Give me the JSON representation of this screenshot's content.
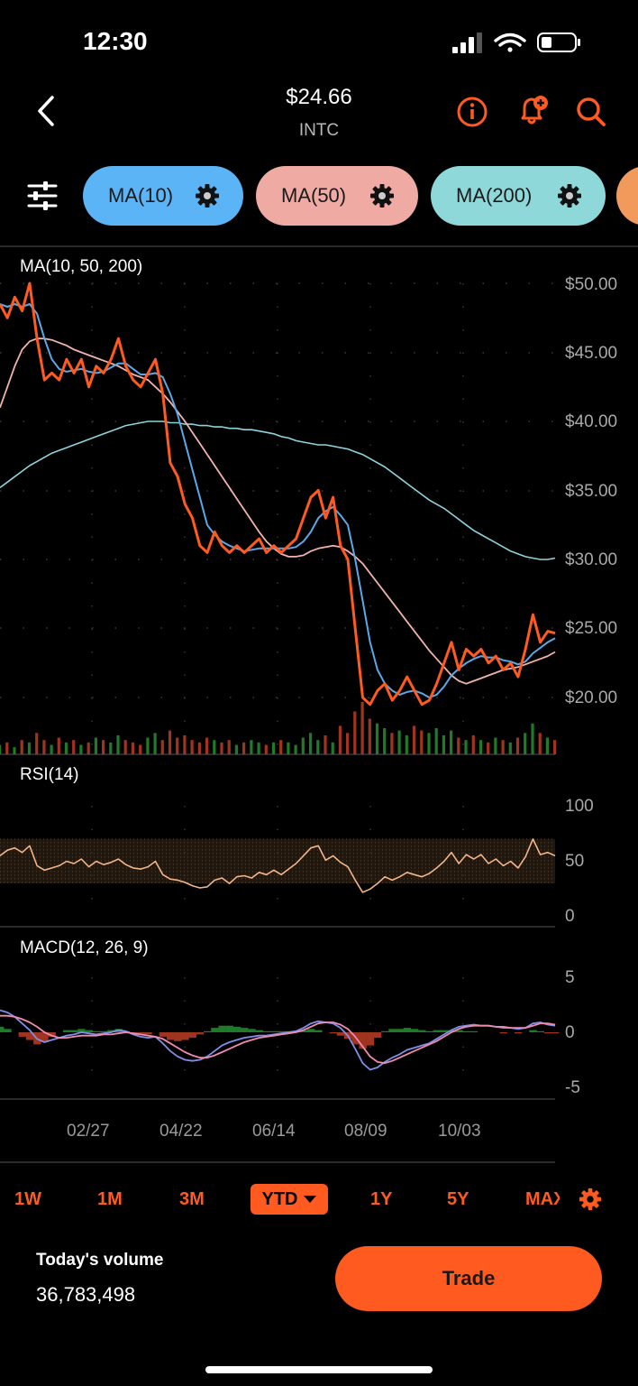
{
  "status_bar": {
    "time": "12:30"
  },
  "header": {
    "price": "$24.66",
    "ticker": "INTC"
  },
  "indicator_pills": [
    {
      "label": "MA(10)",
      "color": "#5bb4f5"
    },
    {
      "label": "MA(50)",
      "color": "#f0aaa4"
    },
    {
      "label": "MA(200)",
      "color": "#8ed8da"
    }
  ],
  "panels": {
    "ma_label": "MA(10, 50, 200)",
    "rsi_label": "RSI(14)",
    "macd_label": "MACD(12, 26, 9)"
  },
  "range_tabs": [
    "1W",
    "1M",
    "3M",
    "YTD",
    "1Y",
    "5Y",
    "MAX"
  ],
  "selected_range": "YTD",
  "footer": {
    "volume_label": "Today's volume",
    "volume_value": "36,783,498",
    "trade_label": "Trade"
  },
  "colors": {
    "accent": "#ff5a1f",
    "price": "#ff5a1f",
    "ma10": "#5aa9e6",
    "ma50": "#f2b3ad",
    "ma200": "#8fd3dd",
    "rsi": "#f2b58a",
    "macd": "#7f8fe8",
    "signal": "#f08ab0",
    "hist_pos": "#1f7a2a",
    "hist_neg": "#a0341e"
  },
  "chart_data": [
    {
      "type": "line",
      "title": "MA(10, 50, 200)",
      "x_ticks": [
        "02/27",
        "04/22",
        "06/14",
        "08/09",
        "10/03"
      ],
      "y_ticks": [
        "$50.00",
        "$45.00",
        "$40.00",
        "$35.00",
        "$30.00",
        "$25.00",
        "$20.00"
      ],
      "ylim": [
        15.5,
        52
      ],
      "series": [
        {
          "name": "Price",
          "values": [
            48.5,
            47.5,
            49,
            48,
            50,
            46,
            43,
            43.5,
            43,
            44.5,
            43.5,
            44.5,
            42.5,
            44,
            43.5,
            44.5,
            46,
            44,
            43,
            42.5,
            43.5,
            44.5,
            42,
            37,
            36,
            34,
            33,
            31,
            30.5,
            32,
            31,
            30.5,
            31,
            30.5,
            31,
            31.5,
            30.5,
            31,
            30.5,
            31,
            31.5,
            33,
            34.5,
            35,
            33,
            34.5,
            31,
            30,
            25,
            20,
            19.5,
            20.5,
            21,
            19.8,
            20.5,
            21.5,
            20.5,
            19.5,
            19.8,
            21,
            22.5,
            24,
            22,
            23.5,
            23,
            23.5,
            22.5,
            23,
            22,
            22.5,
            21.5,
            23.5,
            26,
            24,
            24.8,
            24.66
          ]
        },
        {
          "name": "MA(10)",
          "values": [
            48.5,
            48.3,
            48.5,
            48.3,
            48.5,
            47.8,
            46,
            44.5,
            43.8,
            43.6,
            43.7,
            43.8,
            43.6,
            43.5,
            43.6,
            43.9,
            44.2,
            44.2,
            43.8,
            43.4,
            43.4,
            43.5,
            43.2,
            42,
            40.5,
            38.5,
            36.5,
            34.5,
            32.5,
            31.8,
            31.3,
            31,
            30.8,
            30.6,
            30.7,
            30.8,
            30.8,
            30.8,
            30.8,
            30.8,
            30.9,
            31.3,
            32,
            33,
            33.5,
            33.8,
            33.2,
            32.5,
            30,
            27,
            24,
            22,
            21,
            20.5,
            20.2,
            20.4,
            20.5,
            20.3,
            20,
            20.2,
            20.8,
            21.6,
            22.1,
            22.5,
            22.8,
            23,
            22.9,
            22.9,
            22.7,
            22.6,
            22.4,
            22.6,
            23.2,
            23.6,
            24,
            24.3
          ]
        },
        {
          "name": "MA(50)",
          "values": [
            41,
            42.5,
            44,
            45.2,
            45.8,
            46,
            46,
            45.9,
            45.7,
            45.5,
            45.2,
            45,
            44.8,
            44.6,
            44.4,
            44.2,
            44,
            43.7,
            43.4,
            43.2,
            43,
            42.5,
            42,
            41.4,
            40.7,
            40,
            39.2,
            38.4,
            37.6,
            36.8,
            36,
            35.2,
            34.4,
            33.6,
            32.8,
            32,
            31.3,
            30.8,
            30.4,
            30.2,
            30.2,
            30.3,
            30.6,
            30.8,
            30.9,
            31,
            30.9,
            30.6,
            30.2,
            29.7,
            29,
            28.3,
            27.6,
            26.9,
            26.2,
            25.5,
            24.8,
            24.1,
            23.4,
            22.8,
            22.2,
            21.6,
            21.2,
            21,
            21.2,
            21.4,
            21.6,
            21.8,
            22,
            22.1,
            22.2,
            22.4,
            22.6,
            22.8,
            23,
            23.3
          ]
        },
        {
          "name": "MA(200)",
          "values": [
            35.2,
            35.6,
            36,
            36.4,
            36.8,
            37.1,
            37.4,
            37.7,
            37.9,
            38.1,
            38.3,
            38.5,
            38.7,
            38.9,
            39.1,
            39.3,
            39.5,
            39.7,
            39.8,
            39.9,
            40,
            40,
            40,
            39.9,
            39.9,
            39.8,
            39.8,
            39.7,
            39.7,
            39.6,
            39.6,
            39.5,
            39.5,
            39.4,
            39.4,
            39.3,
            39.2,
            39.1,
            38.9,
            38.8,
            38.6,
            38.5,
            38.4,
            38.3,
            38.3,
            38.2,
            38.1,
            38,
            37.8,
            37.6,
            37.3,
            37,
            36.7,
            36.3,
            35.9,
            35.5,
            35.1,
            34.7,
            34.3,
            34,
            33.7,
            33.3,
            32.9,
            32.5,
            32.1,
            31.8,
            31.5,
            31.2,
            30.9,
            30.6,
            30.4,
            30.2,
            30.1,
            30,
            30,
            30.1
          ]
        }
      ],
      "volume_values": [
        4,
        5,
        3,
        6,
        5,
        9,
        6,
        4,
        7,
        5,
        6,
        4,
        5,
        7,
        6,
        5,
        8,
        6,
        5,
        4,
        7,
        9,
        6,
        10,
        7,
        8,
        6,
        5,
        7,
        6,
        5,
        6,
        4,
        5,
        6,
        5,
        4,
        5,
        6,
        5,
        4,
        7,
        9,
        6,
        8,
        5,
        12,
        9,
        18,
        22,
        15,
        13,
        11,
        9,
        10,
        8,
        12,
        10,
        9,
        11,
        8,
        10,
        7,
        6,
        8,
        6,
        5,
        7,
        6,
        5,
        7,
        9,
        13,
        9,
        7,
        6
      ]
    },
    {
      "type": "line",
      "title": "RSI(14)",
      "y_ticks": [
        "100",
        "50",
        "0"
      ],
      "ylim": [
        0,
        100
      ],
      "band": [
        30,
        70
      ],
      "series": [
        {
          "name": "RSI(14)",
          "values": [
            55,
            60,
            62,
            58,
            64,
            46,
            42,
            44,
            46,
            50,
            48,
            52,
            45,
            50,
            47,
            49,
            52,
            47,
            44,
            43,
            45,
            50,
            38,
            34,
            33,
            31,
            28,
            26,
            27,
            33,
            35,
            30,
            36,
            37,
            35,
            40,
            38,
            42,
            38,
            43,
            48,
            55,
            62,
            64,
            51,
            55,
            49,
            45,
            33,
            22,
            25,
            30,
            36,
            33,
            36,
            40,
            38,
            36,
            39,
            44,
            50,
            58,
            48,
            56,
            52,
            56,
            48,
            52,
            46,
            50,
            44,
            54,
            70,
            56,
            58,
            55
          ]
        }
      ]
    },
    {
      "type": "line",
      "title": "MACD(12, 26, 9)",
      "y_ticks": [
        "5",
        "0",
        "-5"
      ],
      "ylim": [
        -6,
        6
      ],
      "series": [
        {
          "name": "MACD",
          "values": [
            2,
            1.8,
            1.4,
            0.8,
            0.2,
            -0.6,
            -0.9,
            -0.7,
            -0.5,
            -0.3,
            -0.2,
            0,
            -0.1,
            -0.2,
            -0.1,
            0,
            0.2,
            0.1,
            -0.2,
            -0.4,
            -0.5,
            -0.4,
            -1,
            -1.7,
            -2.2,
            -2.5,
            -2.6,
            -2.5,
            -2.2,
            -1.7,
            -1.2,
            -0.9,
            -0.7,
            -0.5,
            -0.4,
            -0.3,
            -0.3,
            -0.2,
            -0.1,
            0,
            0.1,
            0.4,
            0.8,
            1,
            0.9,
            0.8,
            0.4,
            -0.3,
            -1.5,
            -2.8,
            -3.4,
            -3.2,
            -2.7,
            -2.3,
            -2,
            -1.6,
            -1.4,
            -1.2,
            -1,
            -0.6,
            -0.2,
            0.2,
            0.5,
            0.6,
            0.7,
            0.6,
            0.6,
            0.5,
            0.4,
            0.4,
            0.3,
            0.4,
            0.8,
            0.9,
            0.7,
            0.6
          ]
        },
        {
          "name": "Signal",
          "values": [
            1.5,
            1.5,
            1.4,
            1.2,
            0.9,
            0.5,
            0,
            -0.3,
            -0.5,
            -0.5,
            -0.4,
            -0.3,
            -0.3,
            -0.3,
            -0.2,
            -0.2,
            -0.1,
            0,
            -0.1,
            -0.2,
            -0.3,
            -0.4,
            -0.6,
            -1,
            -1.4,
            -1.8,
            -2.1,
            -2.3,
            -2.3,
            -2.1,
            -1.8,
            -1.5,
            -1.2,
            -0.9,
            -0.7,
            -0.5,
            -0.4,
            -0.3,
            -0.2,
            -0.1,
            0,
            0.2,
            0.5,
            0.8,
            0.9,
            0.9,
            0.7,
            0.3,
            -0.4,
            -1.3,
            -2.2,
            -2.7,
            -2.8,
            -2.6,
            -2.3,
            -2,
            -1.7,
            -1.4,
            -1.1,
            -0.8,
            -0.4,
            0,
            0.3,
            0.5,
            0.6,
            0.6,
            0.6,
            0.5,
            0.5,
            0.4,
            0.4,
            0.4,
            0.6,
            0.8,
            0.8,
            0.7
          ]
        }
      ]
    }
  ]
}
